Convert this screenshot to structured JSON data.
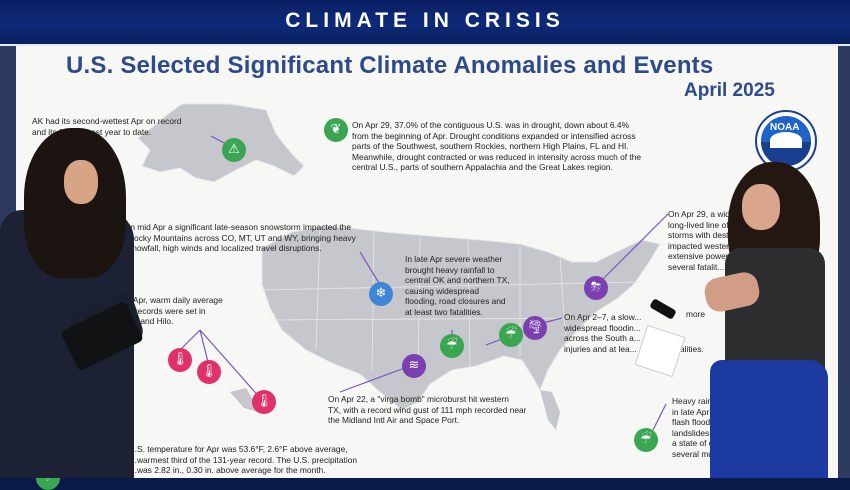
{
  "banner": {
    "title": "CLIMATE IN CRISIS"
  },
  "board": {
    "title": "U.S. Selected Significant Climate Anomalies and Events",
    "subtitle": "April 2025",
    "logo_text": "NOAA"
  },
  "annotations": {
    "alaska": [
      "AK had its second-wettest Apr on record",
      "and its f... warmest year to date."
    ],
    "drought": [
      "On Apr 29, 37.0% of the contiguous U.S. was in drought, down about 6.4%",
      "from the beginning of Apr. Drought conditions expanded or intensified across",
      "parts of the Southwest, southern Rockies, northern High Plains, FL and HI.",
      "Meanwhile, drought contracted or was reduced in intensity across much of the",
      "central U.S., parts of southern Appalachia and the Great Lakes region."
    ],
    "snowstorm": [
      "In mid Apr a significant late-season snowstorm impacted the",
      "Rocky Mountains across CO, MT, UT and WY, bringing heavy",
      "snowfall, high winds and localized travel disruptions."
    ],
    "hawaii": [
      "...ly Apr, warm daily average",
      "...re records were set in",
      "...lulu and Hilo."
    ],
    "rain_texas": [
      "In late Apr severe weather",
      "brought heavy rainfall to",
      "central OK and northern TX,",
      "causing widespread",
      "flooding, road closures and",
      "at least two fatalities."
    ],
    "east_storm": [
      "On Apr 29, a wide...",
      "long-lived line of",
      "storms with dest...",
      "impacted wester...",
      "extensive power",
      "several fatalit..."
    ],
    "south_flood": [
      "On Apr 2–7, a slow...",
      "widespread floodin...",
      "across the South a...",
      "injuries and at lea..."
    ],
    "virga": [
      "On Apr 22, a \"virga bomb\" microburst hit western",
      "TX, with a record wind gust of 111 mph recorded near",
      "the Midland Intl Air and Space Port."
    ],
    "southeast_rain": [
      "Heavy rain fe...",
      "in late Apr a...",
      "flash floodin...",
      "landslides t...",
      "a state of e...",
      "several mu..."
    ],
    "temperature": [
      "...S. temperature for Apr was 53.6°F, 2.6°F above average,",
      "...warmest third of the 131-year record. The U.S. precipitation",
      "...was 2.82 in., 0.30 in. above average for the month."
    ],
    "fragments": [
      "more",
      "...alities."
    ]
  },
  "icons": {
    "alaska": "warning-icon",
    "drought": "drought-plant-icon",
    "snow": "snowflake-icon",
    "heat": "thermometer-icon",
    "flood": "rain-icon",
    "wind": "wind-icon",
    "storm": "thunderstorm-icon",
    "tornado": "tornado-icon"
  },
  "colors": {
    "banner": "#0d2a7a",
    "title": "#2d4a8a",
    "icon_green": "#3aa652",
    "icon_blue": "#3e86d6",
    "icon_red": "#e0316a",
    "icon_purple": "#7c3fb0",
    "map_fill": "#c5c7cc",
    "leader_line": "#6b49b8"
  }
}
